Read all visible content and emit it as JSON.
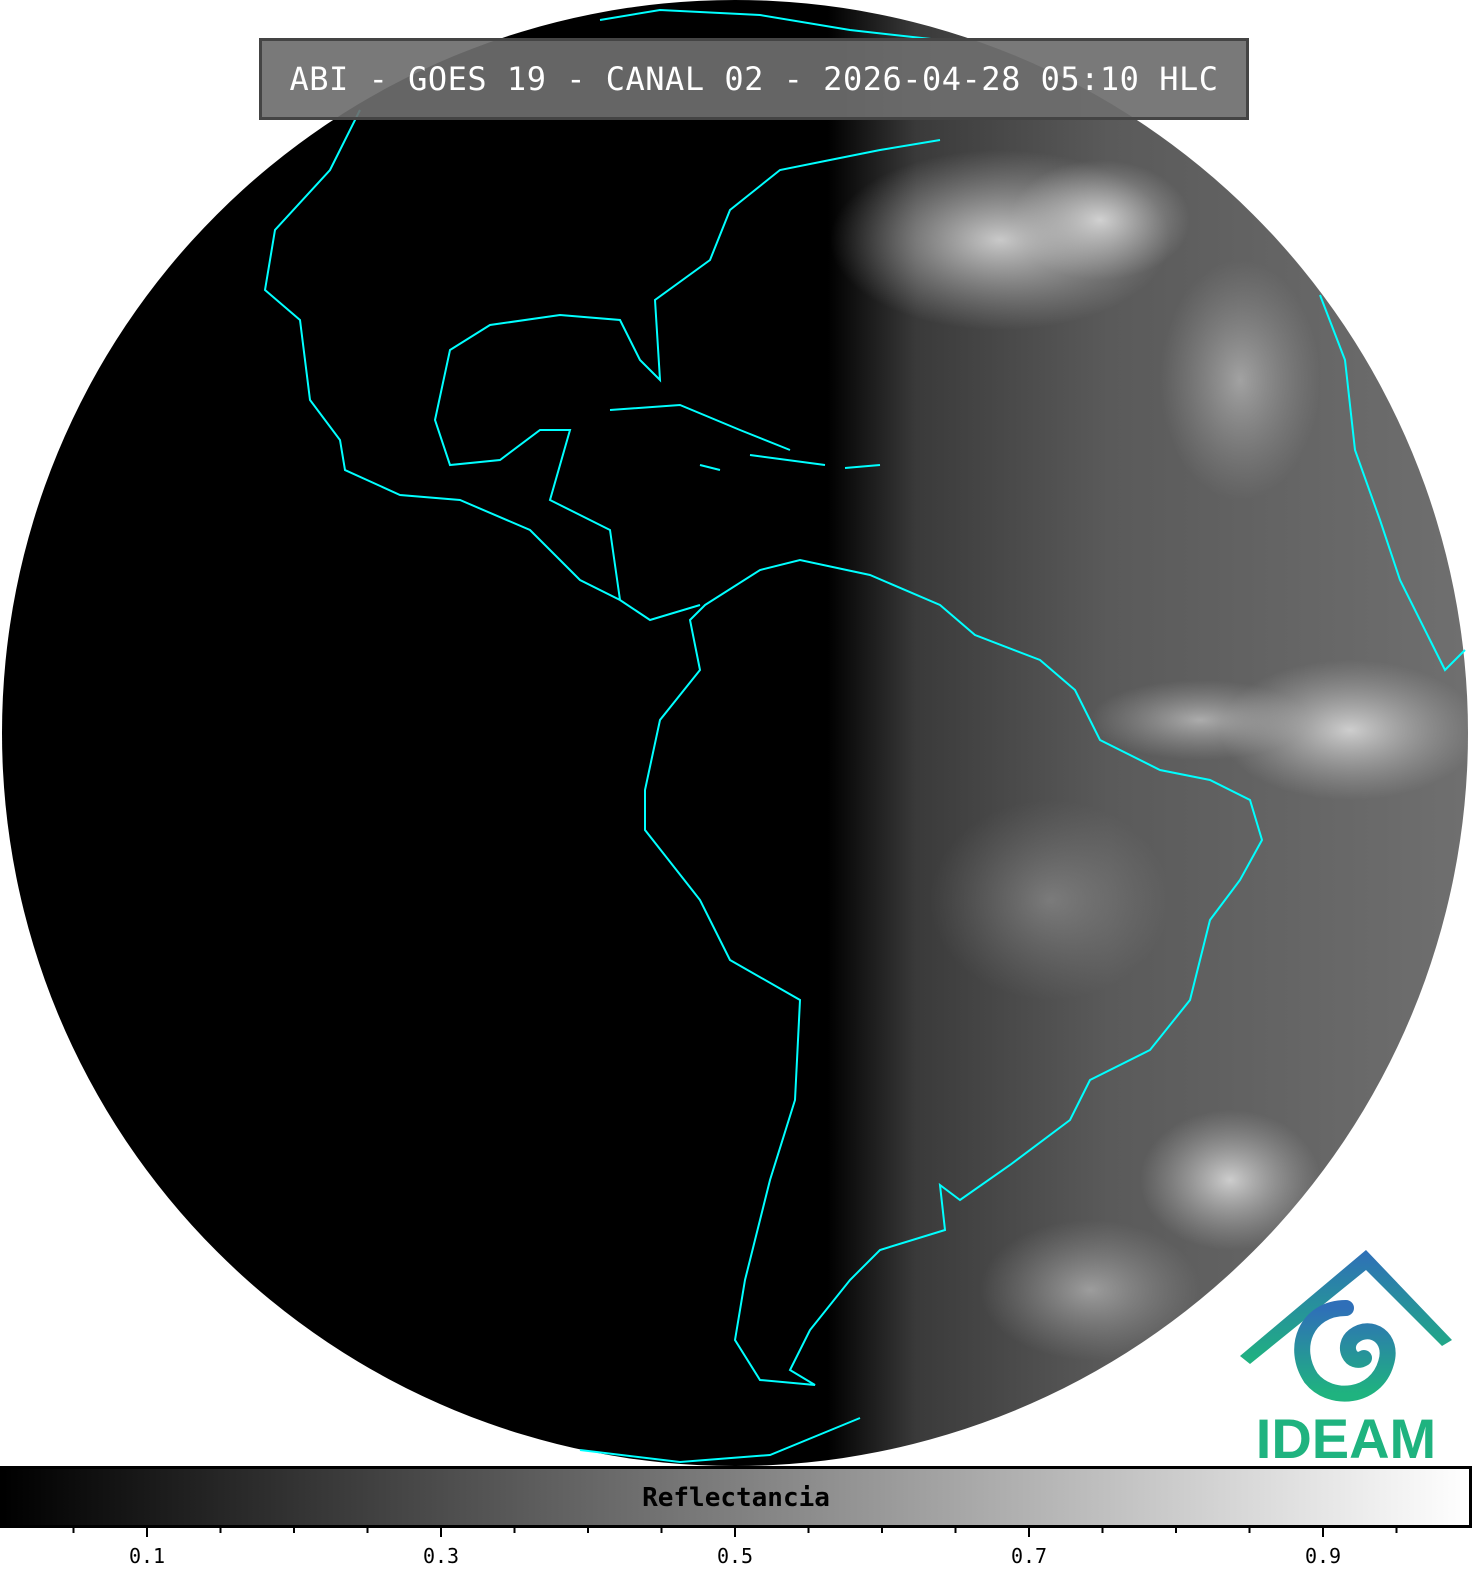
{
  "title": "ABI - GOES 19 - CANAL 02 - 2026-04-28 05:10 HLC",
  "logo": {
    "text": "IDEAM",
    "colors": [
      "#2f6fb8",
      "#1fb37f"
    ]
  },
  "colorbar": {
    "label": "Reflectancia",
    "range": [
      0,
      1
    ],
    "colormap": "grayscale black-to-white",
    "major_ticks": [
      "0.1",
      "0.3",
      "0.5",
      "0.7",
      "0.9"
    ],
    "minor_tick_step": 0.05
  },
  "map": {
    "projection": "full disk geostationary",
    "coastline_color": "#00ffff",
    "border_color": "#000000"
  }
}
